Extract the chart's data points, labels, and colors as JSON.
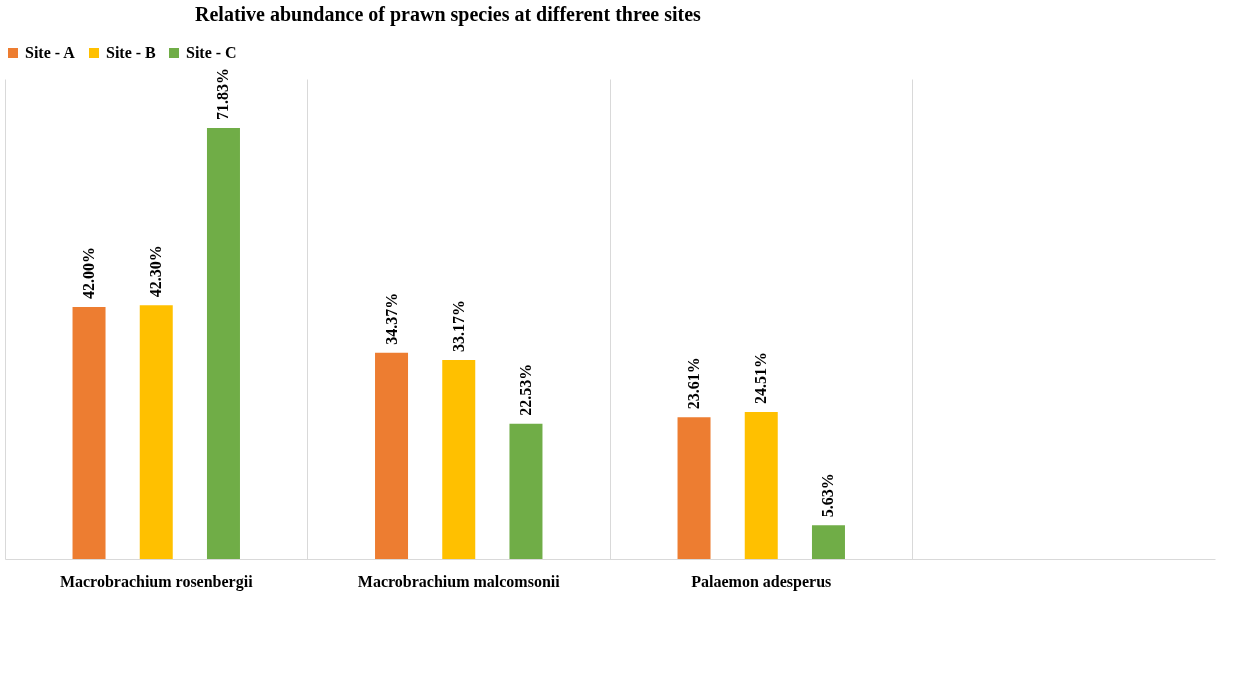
{
  "chart_data": {
    "type": "bar",
    "title": "Relative abundance of prawn species at different three sites",
    "categories": [
      "Macrobrachium rosenbergii",
      "Macrobrachium malcomsonii",
      "Palaemon adesperus",
      null
    ],
    "series": [
      {
        "name": "Site - A",
        "color": "#ed7d31",
        "values": [
          42.0,
          34.37,
          23.61,
          null
        ],
        "value_labels": [
          "42.00%",
          "34.37%",
          "23.61%",
          null
        ]
      },
      {
        "name": "Site - B",
        "color": "#ffc000",
        "values": [
          42.3,
          33.17,
          24.51,
          null
        ],
        "value_labels": [
          "42.30%",
          "33.17%",
          "24.51%",
          null
        ]
      },
      {
        "name": "Site - C",
        "color": "#70ad47",
        "values": [
          71.83,
          22.53,
          5.63,
          null
        ],
        "value_labels": [
          "71.83%",
          "22.53%",
          "5.63%",
          null
        ]
      }
    ],
    "grid": "x",
    "legend": "top"
  }
}
